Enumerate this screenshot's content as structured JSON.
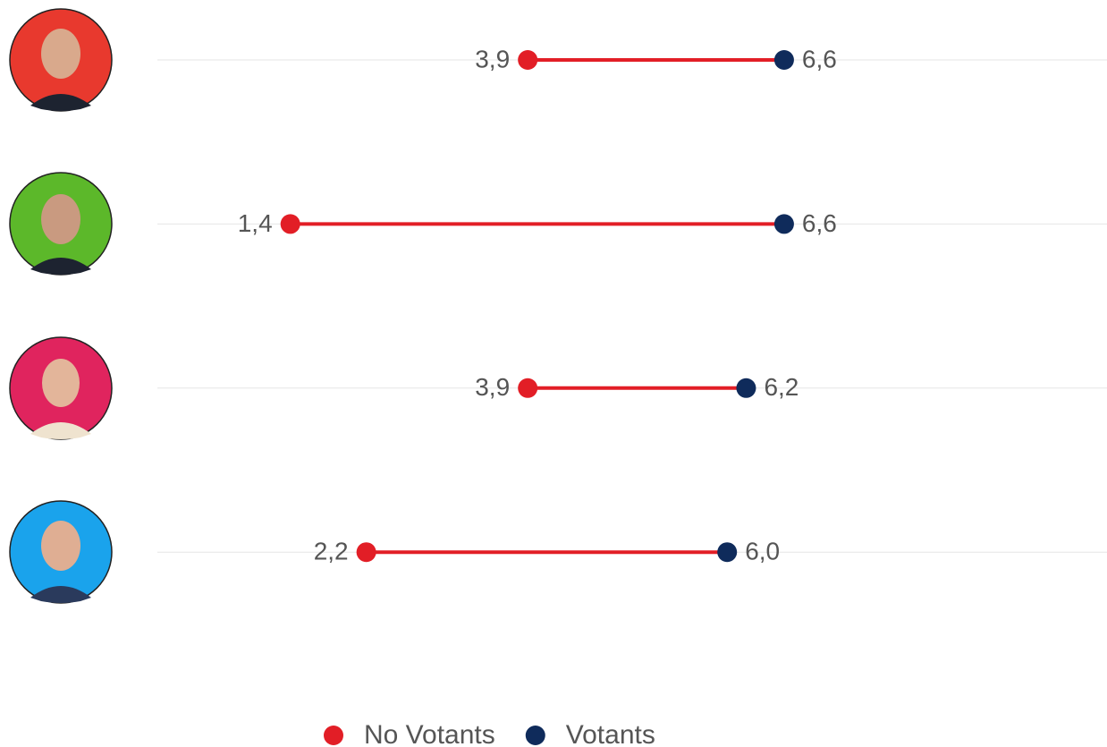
{
  "chart_data": {
    "type": "dumbbell",
    "categories": [
      null,
      null,
      null,
      null
    ],
    "series": [
      {
        "name": "No Votants",
        "color": "#e21e26",
        "values": [
          3.9,
          1.4,
          3.9,
          2.2
        ],
        "value_labels": [
          "3,9",
          "1,4",
          "3,9",
          "2,2"
        ]
      },
      {
        "name": "Votants",
        "color": "#0f2b5b",
        "values": [
          6.6,
          6.6,
          6.2,
          6.0
        ],
        "value_labels": [
          "6,6",
          "6,6",
          "6,2",
          "6,0"
        ]
      }
    ],
    "xlim": [
      0,
      10
    ]
  }
}
